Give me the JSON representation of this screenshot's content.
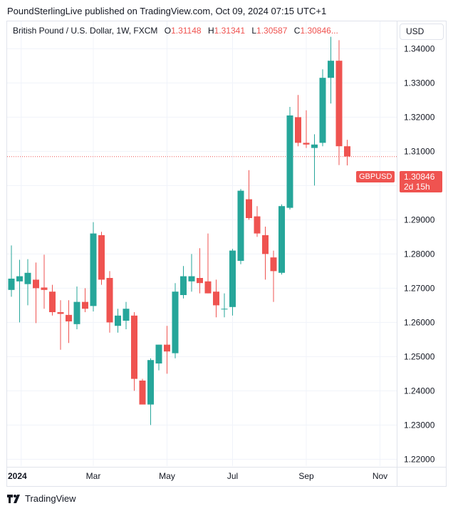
{
  "caption": "PoundSterlingLive published on TradingView.com, Oct 09, 2024 07:15 UTC+1",
  "legend": {
    "title": "British Pound / U.S. Dollar, 1W, FXCM",
    "open_label": "O",
    "open": "1.31148",
    "high_label": "H",
    "high": "1.31341",
    "low_label": "L",
    "low": "1.30587",
    "close_label": "C",
    "close": "1.30846",
    "ellipsis": "..."
  },
  "currency_button": "USD",
  "price_tag": {
    "symbol": "GBPUSD",
    "price": "1.30846",
    "countdown": "2d 15h"
  },
  "footer": {
    "brand": "TradingView",
    "logo_icon": "tradingview-logo-icon"
  },
  "colors": {
    "up": "#26a69a",
    "down": "#ef5350",
    "grid": "#f0f3fa"
  },
  "chart_data": {
    "type": "candlestick",
    "symbol": "GBPUSD",
    "interval": "1W",
    "ylim": [
      1.218,
      1.348
    ],
    "y_ticks": [
      "1.22000",
      "1.23000",
      "1.24000",
      "1.25000",
      "1.26000",
      "1.27000",
      "1.28000",
      "1.29000",
      "1.30000",
      "1.31000",
      "1.32000",
      "1.33000",
      "1.34000",
      "1.35000"
    ],
    "x_ticks": [
      {
        "label": "2024",
        "week": 1.2,
        "bold": true
      },
      {
        "label": "Mar",
        "week": 10
      },
      {
        "label": "May",
        "week": 19
      },
      {
        "label": "Jul",
        "week": 27
      },
      {
        "label": "Sep",
        "week": 36
      },
      {
        "label": "Nov",
        "week": 45
      }
    ],
    "last_price": 1.30846,
    "candles": [
      {
        "o": 1.2695,
        "h": 1.2825,
        "l": 1.2675,
        "c": 1.2728
      },
      {
        "o": 1.272,
        "h": 1.2783,
        "l": 1.26,
        "c": 1.2735
      },
      {
        "o": 1.2712,
        "h": 1.2785,
        "l": 1.265,
        "c": 1.2745
      },
      {
        "o": 1.2725,
        "h": 1.2775,
        "l": 1.2598,
        "c": 1.27
      },
      {
        "o": 1.2702,
        "h": 1.2798,
        "l": 1.264,
        "c": 1.2695
      },
      {
        "o": 1.269,
        "h": 1.271,
        "l": 1.262,
        "c": 1.263
      },
      {
        "o": 1.263,
        "h": 1.2665,
        "l": 1.252,
        "c": 1.2625
      },
      {
        "o": 1.2622,
        "h": 1.2665,
        "l": 1.254,
        "c": 1.2603
      },
      {
        "o": 1.2595,
        "h": 1.2705,
        "l": 1.258,
        "c": 1.266
      },
      {
        "o": 1.266,
        "h": 1.27,
        "l": 1.263,
        "c": 1.264
      },
      {
        "o": 1.2648,
        "h": 1.2893,
        "l": 1.2632,
        "c": 1.286
      },
      {
        "o": 1.2855,
        "h": 1.2865,
        "l": 1.271,
        "c": 1.2725
      },
      {
        "o": 1.273,
        "h": 1.275,
        "l": 1.257,
        "c": 1.26
      },
      {
        "o": 1.259,
        "h": 1.264,
        "l": 1.257,
        "c": 1.262
      },
      {
        "o": 1.2605,
        "h": 1.266,
        "l": 1.258,
        "c": 1.264
      },
      {
        "o": 1.262,
        "h": 1.263,
        "l": 1.24,
        "c": 1.2435
      },
      {
        "o": 1.243,
        "h": 1.2435,
        "l": 1.2365,
        "c": 1.236
      },
      {
        "o": 1.236,
        "h": 1.2495,
        "l": 1.23,
        "c": 1.249
      },
      {
        "o": 1.248,
        "h": 1.2535,
        "l": 1.246,
        "c": 1.2535
      },
      {
        "o": 1.2535,
        "h": 1.259,
        "l": 1.245,
        "c": 1.2515
      },
      {
        "o": 1.251,
        "h": 1.2715,
        "l": 1.2495,
        "c": 1.269
      },
      {
        "o": 1.268,
        "h": 1.2765,
        "l": 1.267,
        "c": 1.2735
      },
      {
        "o": 1.272,
        "h": 1.28,
        "l": 1.269,
        "c": 1.2735
      },
      {
        "o": 1.273,
        "h": 1.2817,
        "l": 1.2685,
        "c": 1.2715
      },
      {
        "o": 1.272,
        "h": 1.286,
        "l": 1.2685,
        "c": 1.2685
      },
      {
        "o": 1.269,
        "h": 1.2725,
        "l": 1.2615,
        "c": 1.265
      },
      {
        "o": 1.264,
        "h": 1.2685,
        "l": 1.2615,
        "c": 1.264
      },
      {
        "o": 1.2645,
        "h": 1.2815,
        "l": 1.262,
        "c": 1.281
      },
      {
        "o": 1.278,
        "h": 1.299,
        "l": 1.277,
        "c": 1.2985
      },
      {
        "o": 1.296,
        "h": 1.3045,
        "l": 1.29,
        "c": 1.2905
      },
      {
        "o": 1.291,
        "h": 1.294,
        "l": 1.285,
        "c": 1.286
      },
      {
        "o": 1.2855,
        "h": 1.288,
        "l": 1.2725,
        "c": 1.28
      },
      {
        "o": 1.279,
        "h": 1.281,
        "l": 1.266,
        "c": 1.275
      },
      {
        "o": 1.2745,
        "h": 1.2945,
        "l": 1.274,
        "c": 1.294
      },
      {
        "o": 1.2935,
        "h": 1.323,
        "l": 1.293,
        "c": 1.3205
      },
      {
        "o": 1.32,
        "h": 1.3265,
        "l": 1.3115,
        "c": 1.3125
      },
      {
        "o": 1.3125,
        "h": 1.322,
        "l": 1.311,
        "c": 1.312
      },
      {
        "o": 1.311,
        "h": 1.315,
        "l": 1.3,
        "c": 1.312
      },
      {
        "o": 1.3125,
        "h": 1.334,
        "l": 1.3115,
        "c": 1.3315
      },
      {
        "o": 1.3315,
        "h": 1.3435,
        "l": 1.324,
        "c": 1.3365
      },
      {
        "o": 1.3365,
        "h": 1.3425,
        "l": 1.306,
        "c": 1.3115
      },
      {
        "o": 1.3115,
        "h": 1.3134,
        "l": 1.3059,
        "c": 1.3085
      }
    ]
  }
}
